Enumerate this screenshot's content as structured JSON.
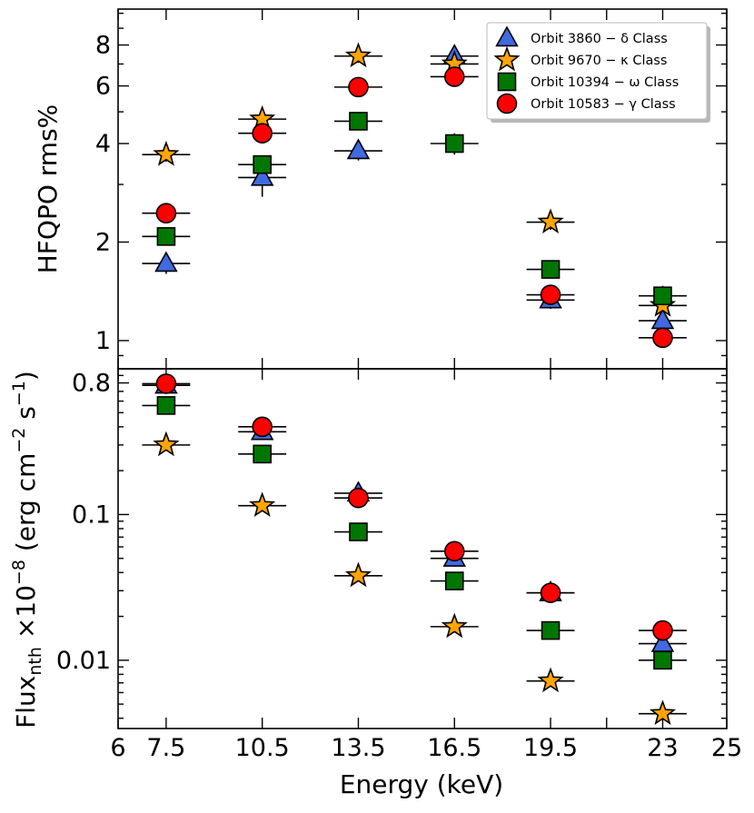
{
  "chart_data": [
    {
      "type": "scatter",
      "panel": "top",
      "ylabel": "HFQPO rms%",
      "yscale": "log",
      "ylim": [
        0.82,
        10.3
      ],
      "yticks": [
        1,
        2,
        4,
        6,
        8
      ],
      "yticklabels": [
        "1",
        "2",
        "4",
        "6",
        "8"
      ],
      "x_half_width": 0.75,
      "legend": "upper-right",
      "series": [
        {
          "name": "Orbit 3860",
          "legend_label": "Orbit 3860 − δ Class",
          "marker": "triangle",
          "color": "#4169e1",
          "x": [
            7.5,
            10.5,
            13.5,
            16.5,
            19.5,
            23
          ],
          "y": [
            1.72,
            3.15,
            3.8,
            7.4,
            1.33,
            1.15
          ],
          "yerr": [
            0.12,
            0.4,
            0.25,
            0.4,
            0.08,
            0.08
          ]
        },
        {
          "name": "Orbit 9670",
          "legend_label": "Orbit 9670 − κ Class",
          "marker": "star",
          "color": "#ffa500",
          "x": [
            7.5,
            10.5,
            13.5,
            16.5,
            19.5,
            23
          ],
          "y": [
            3.7,
            4.75,
            7.4,
            7.0,
            2.3,
            1.28
          ],
          "yerr": [
            0.18,
            0.4,
            0.35,
            0.3,
            0.12,
            0.08
          ]
        },
        {
          "name": "Orbit 10394",
          "legend_label": "Orbit 10394 − ω Class",
          "marker": "square",
          "color": "#007700",
          "x": [
            7.5,
            10.5,
            13.5,
            16.5,
            19.5,
            23
          ],
          "y": [
            2.08,
            3.45,
            4.68,
            4.0,
            1.65,
            1.37
          ],
          "yerr": [
            0.12,
            0.2,
            0.25,
            0.3,
            0.1,
            0.1
          ]
        },
        {
          "name": "Orbit 10583",
          "legend_label": "Orbit 10583 − γ Class",
          "marker": "circle",
          "color": "#ff0000",
          "x": [
            7.5,
            10.5,
            13.5,
            16.5,
            19.5,
            23
          ],
          "y": [
            2.45,
            4.3,
            5.95,
            6.4,
            1.38,
            1.02
          ],
          "yerr": [
            0.12,
            0.3,
            0.4,
            0.4,
            0.08,
            0.06
          ]
        }
      ]
    },
    {
      "type": "scatter",
      "panel": "bottom",
      "ylabel_main": "Flux",
      "ylabel_sub": "nth",
      "ylabel_rest": " ×10",
      "ylabel_exp": "−8",
      "ylabel_units": " (erg cm",
      "ylabel_units_exp1": "−2",
      "ylabel_units_mid": " s",
      "ylabel_units_exp2": "−1",
      "ylabel_units_end": ")",
      "yscale": "log",
      "ylim": [
        0.0034,
        1.0
      ],
      "yticks": [
        0.01,
        0.1,
        0.8
      ],
      "yticklabels": [
        "0.01",
        "0.1",
        "0.8"
      ],
      "x_half_width": 0.75,
      "series": [
        {
          "name": "Orbit 3860",
          "marker": "triangle",
          "color": "#4169e1",
          "x": [
            7.5,
            10.5,
            13.5,
            16.5,
            19.5,
            23
          ],
          "y": [
            0.77,
            0.37,
            0.14,
            0.05,
            0.029,
            0.013
          ]
        },
        {
          "name": "Orbit 9670",
          "marker": "star",
          "color": "#ffa500",
          "x": [
            7.5,
            10.5,
            13.5,
            16.5,
            19.5,
            23
          ],
          "y": [
            0.3,
            0.115,
            0.038,
            0.017,
            0.0072,
            0.0043
          ]
        },
        {
          "name": "Orbit 10394",
          "marker": "square",
          "color": "#007700",
          "x": [
            7.5,
            10.5,
            13.5,
            16.5,
            19.5,
            23
          ],
          "y": [
            0.56,
            0.26,
            0.076,
            0.035,
            0.016,
            0.01
          ]
        },
        {
          "name": "Orbit 10583",
          "marker": "circle",
          "color": "#ff0000",
          "x": [
            7.5,
            10.5,
            13.5,
            16.5,
            19.5,
            23
          ],
          "y": [
            0.79,
            0.4,
            0.13,
            0.056,
            0.029,
            0.016
          ]
        }
      ]
    }
  ],
  "x_axis": {
    "label": "Energy (keV)",
    "xlim": [
      6,
      25
    ],
    "ticks": [
      6,
      7.5,
      10.5,
      13.5,
      16.5,
      19.5,
      23,
      25
    ],
    "ticklabels": [
      "6",
      "7.5",
      "10.5",
      "13.5",
      "16.5",
      "19.5",
      "23",
      "25"
    ],
    "extra_minor_ticks": [
      21.25
    ]
  }
}
